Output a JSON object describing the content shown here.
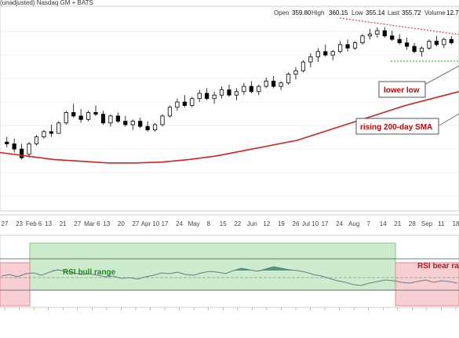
{
  "header": {
    "symbol_line": "(unadjusted) Nasdaq GM + BATS",
    "open_label": "Open",
    "open": "359.80",
    "high_label": "High",
    "high": "360.15",
    "low_label": "Low",
    "low": "355.14",
    "last_label": "Last",
    "last": "355.72",
    "volume_label": "Volume",
    "volume": "12.7"
  },
  "annotations": {
    "lower_low": "lower low",
    "rising_sma": "rising 200-day SMA",
    "rsi_bull": "RSI bull range",
    "rsi_bear": "RSI bear ra"
  },
  "colors": {
    "up_candle": "#ffffff",
    "down_candle": "#000000",
    "sma": "#d42020",
    "annotation_text": "#cc0000",
    "bull_text": "#1f8a1f",
    "bull_zone": "#cdeccd",
    "bear_zone": "#f7cfd3",
    "rsi_line": "#6b7b8c",
    "rsi_fill": "#3c8a6a",
    "support_line": "#44bb44",
    "resistance_line": "#e05050",
    "grid": "#e4e4e4"
  },
  "chart_data": [
    {
      "type": "candlestick",
      "x_axis_labels": [
        "27",
        "23",
        "Feb 6",
        "13",
        "21",
        "27",
        "Mar 6",
        "13",
        "20",
        "27",
        "Apr 10",
        "17",
        "24",
        "May",
        "8",
        "15",
        "22",
        "Jun",
        "12",
        "19",
        "26",
        "Jul 10",
        "17",
        "24",
        "Aug",
        "7",
        "14",
        "21",
        "28",
        "Sep",
        "11",
        "18"
      ],
      "ohlc_approx": [
        [
          0.31,
          0.34,
          0.28,
          0.3
        ],
        [
          0.3,
          0.33,
          0.25,
          0.27
        ],
        [
          0.27,
          0.3,
          0.21,
          0.22
        ],
        [
          0.24,
          0.31,
          0.22,
          0.3
        ],
        [
          0.3,
          0.35,
          0.29,
          0.34
        ],
        [
          0.34,
          0.38,
          0.33,
          0.37
        ],
        [
          0.37,
          0.41,
          0.34,
          0.36
        ],
        [
          0.36,
          0.43,
          0.36,
          0.42
        ],
        [
          0.42,
          0.49,
          0.41,
          0.48
        ],
        [
          0.48,
          0.53,
          0.45,
          0.46
        ],
        [
          0.46,
          0.5,
          0.42,
          0.44
        ],
        [
          0.44,
          0.49,
          0.43,
          0.48
        ],
        [
          0.48,
          0.52,
          0.46,
          0.47
        ],
        [
          0.47,
          0.49,
          0.41,
          0.42
        ],
        [
          0.42,
          0.47,
          0.4,
          0.46
        ],
        [
          0.46,
          0.48,
          0.42,
          0.43
        ],
        [
          0.43,
          0.46,
          0.4,
          0.41
        ],
        [
          0.41,
          0.44,
          0.38,
          0.43
        ],
        [
          0.43,
          0.45,
          0.39,
          0.4
        ],
        [
          0.4,
          0.43,
          0.37,
          0.38
        ],
        [
          0.38,
          0.42,
          0.37,
          0.41
        ],
        [
          0.41,
          0.47,
          0.4,
          0.46
        ],
        [
          0.46,
          0.52,
          0.45,
          0.51
        ],
        [
          0.51,
          0.56,
          0.49,
          0.54
        ],
        [
          0.54,
          0.58,
          0.51,
          0.52
        ],
        [
          0.52,
          0.57,
          0.51,
          0.56
        ],
        [
          0.56,
          0.61,
          0.54,
          0.59
        ],
        [
          0.59,
          0.62,
          0.55,
          0.56
        ],
        [
          0.56,
          0.6,
          0.53,
          0.58
        ],
        [
          0.58,
          0.63,
          0.56,
          0.61
        ],
        [
          0.61,
          0.64,
          0.57,
          0.58
        ],
        [
          0.58,
          0.62,
          0.55,
          0.6
        ],
        [
          0.6,
          0.65,
          0.58,
          0.63
        ],
        [
          0.63,
          0.66,
          0.59,
          0.6
        ],
        [
          0.6,
          0.64,
          0.58,
          0.63
        ],
        [
          0.63,
          0.68,
          0.62,
          0.66
        ],
        [
          0.66,
          0.69,
          0.62,
          0.63
        ],
        [
          0.63,
          0.66,
          0.61,
          0.65
        ],
        [
          0.65,
          0.71,
          0.64,
          0.7
        ],
        [
          0.7,
          0.74,
          0.67,
          0.72
        ],
        [
          0.72,
          0.78,
          0.71,
          0.77
        ],
        [
          0.77,
          0.82,
          0.74,
          0.8
        ],
        [
          0.8,
          0.85,
          0.77,
          0.83
        ],
        [
          0.83,
          0.87,
          0.8,
          0.81
        ],
        [
          0.81,
          0.84,
          0.78,
          0.83
        ],
        [
          0.83,
          0.89,
          0.82,
          0.87
        ],
        [
          0.87,
          0.9,
          0.83,
          0.85
        ],
        [
          0.85,
          0.89,
          0.84,
          0.88
        ],
        [
          0.88,
          0.93,
          0.87,
          0.92
        ],
        [
          0.92,
          0.96,
          0.9,
          0.93
        ],
        [
          0.93,
          0.97,
          0.91,
          0.95
        ],
        [
          0.95,
          0.97,
          0.91,
          0.92
        ],
        [
          0.92,
          0.95,
          0.89,
          0.9
        ],
        [
          0.9,
          0.93,
          0.87,
          0.88
        ],
        [
          0.88,
          0.91,
          0.84,
          0.86
        ],
        [
          0.86,
          0.88,
          0.82,
          0.83
        ],
        [
          0.83,
          0.86,
          0.8,
          0.85
        ],
        [
          0.85,
          0.9,
          0.84,
          0.89
        ],
        [
          0.89,
          0.92,
          0.86,
          0.87
        ],
        [
          0.87,
          0.91,
          0.85,
          0.9
        ],
        [
          0.9,
          0.92,
          0.87,
          0.88
        ]
      ],
      "sma_200_approx": [
        0.25,
        0.23,
        0.21,
        0.2,
        0.19,
        0.19,
        0.195,
        0.21,
        0.23,
        0.26,
        0.29,
        0.32,
        0.37,
        0.42,
        0.47,
        0.52,
        0.56,
        0.6
      ]
    },
    {
      "type": "line",
      "title": "RSI",
      "y_levels_approx": [
        40,
        50,
        60,
        80
      ],
      "values_approx": [
        58,
        60,
        57,
        61,
        62,
        59,
        63,
        66,
        64,
        62,
        60,
        61,
        59,
        57,
        58,
        55,
        56,
        54,
        57,
        59,
        62,
        61,
        63,
        60,
        59,
        62,
        64,
        63,
        61,
        65,
        68,
        66,
        64,
        67,
        70,
        68,
        66,
        65,
        63,
        60,
        58,
        55,
        52,
        50,
        47,
        46,
        49,
        51,
        53,
        52,
        50,
        49,
        51,
        53,
        50,
        52,
        51,
        49
      ]
    }
  ]
}
